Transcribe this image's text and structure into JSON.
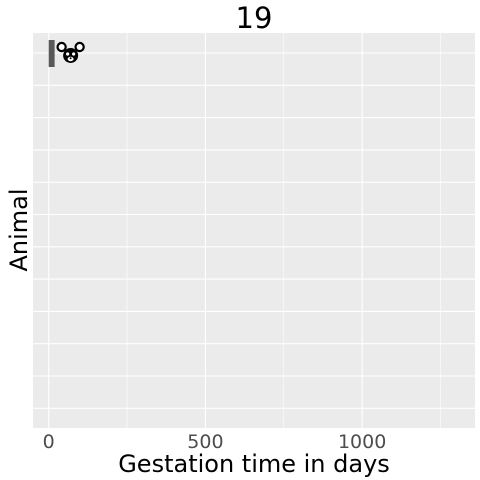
{
  "chart_data": {
    "type": "bar",
    "orientation": "horizontal",
    "title": "19",
    "xlabel": "Gestation time in days",
    "ylabel": "Animal",
    "xlim": [
      -50,
      1360
    ],
    "x_ticks": [
      0,
      500,
      1000
    ],
    "x_tick_labels": [
      "0",
      "500",
      "1000"
    ],
    "grid": true,
    "bars": [
      {
        "value": 19,
        "icon": "mouse-icon"
      }
    ],
    "colors": {
      "panel": "#ebebeb",
      "grid": "#ffffff",
      "bar": "#595959",
      "icon": "#000000"
    }
  }
}
